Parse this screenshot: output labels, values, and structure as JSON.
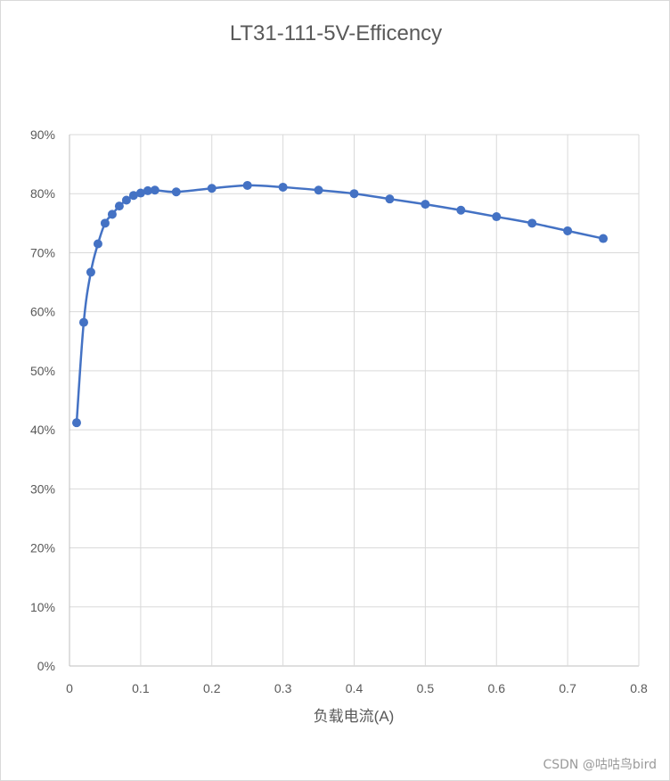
{
  "chart_data": {
    "type": "scatter",
    "title": "LT31-111-5V-Efficency",
    "xlabel": "负载电流(A)",
    "ylabel": "",
    "xlim": [
      0,
      0.8
    ],
    "ylim": [
      0,
      0.9
    ],
    "x_ticks": [
      "0",
      "0.1",
      "0.2",
      "0.3",
      "0.4",
      "0.5",
      "0.6",
      "0.7",
      "0.8"
    ],
    "y_ticks": [
      "0%",
      "10%",
      "20%",
      "30%",
      "40%",
      "50%",
      "60%",
      "70%",
      "80%",
      "90%"
    ],
    "grid": true,
    "legend": "none",
    "series": [
      {
        "color": "#4472c4",
        "marker": "circle",
        "smoothed_line": true,
        "x": [
          0.01,
          0.02,
          0.03,
          0.04,
          0.05,
          0.06,
          0.07,
          0.08,
          0.09,
          0.1,
          0.11,
          0.12,
          0.15,
          0.2,
          0.25,
          0.3,
          0.35,
          0.4,
          0.45,
          0.5,
          0.55,
          0.6,
          0.65,
          0.7,
          0.75
        ],
        "y": [
          0.412,
          0.582,
          0.667,
          0.715,
          0.75,
          0.765,
          0.779,
          0.789,
          0.797,
          0.801,
          0.805,
          0.806,
          0.803,
          0.809,
          0.814,
          0.811,
          0.806,
          0.8,
          0.791,
          0.782,
          0.772,
          0.761,
          0.75,
          0.737,
          0.724
        ]
      }
    ]
  },
  "watermark": "CSDN @咕咕鸟bird"
}
